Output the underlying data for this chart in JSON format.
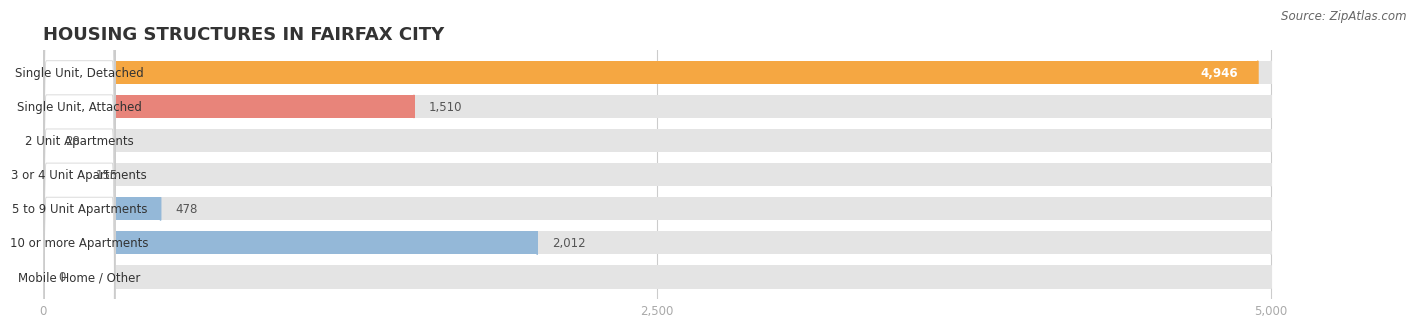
{
  "title": "HOUSING STRUCTURES IN FAIRFAX CITY",
  "source": "Source: ZipAtlas.com",
  "categories": [
    "Single Unit, Detached",
    "Single Unit, Attached",
    "2 Unit Apartments",
    "3 or 4 Unit Apartments",
    "5 to 9 Unit Apartments",
    "10 or more Apartments",
    "Mobile Home / Other"
  ],
  "values": [
    4946,
    1510,
    28,
    155,
    478,
    2012,
    0
  ],
  "bar_colors": [
    "#f5a742",
    "#e8847a",
    "#94b8d8",
    "#94b8d8",
    "#94b8d8",
    "#94b8d8",
    "#c9a8c8"
  ],
  "bar_bg_color": "#e4e4e4",
  "xlim": [
    0,
    5000
  ],
  "xticks": [
    0,
    2500,
    5000
  ],
  "background_color": "#ffffff",
  "title_fontsize": 13,
  "label_fontsize": 8.5,
  "value_fontsize": 8.5,
  "source_fontsize": 8.5,
  "bar_height": 0.68,
  "title_color": "#333333",
  "label_color": "#333333",
  "value_color_white": "#ffffff",
  "value_color_dark": "#555555",
  "source_color": "#666666",
  "tick_color": "#aaaaaa",
  "grid_color": "#cccccc",
  "label_bg_color": "#ffffff"
}
